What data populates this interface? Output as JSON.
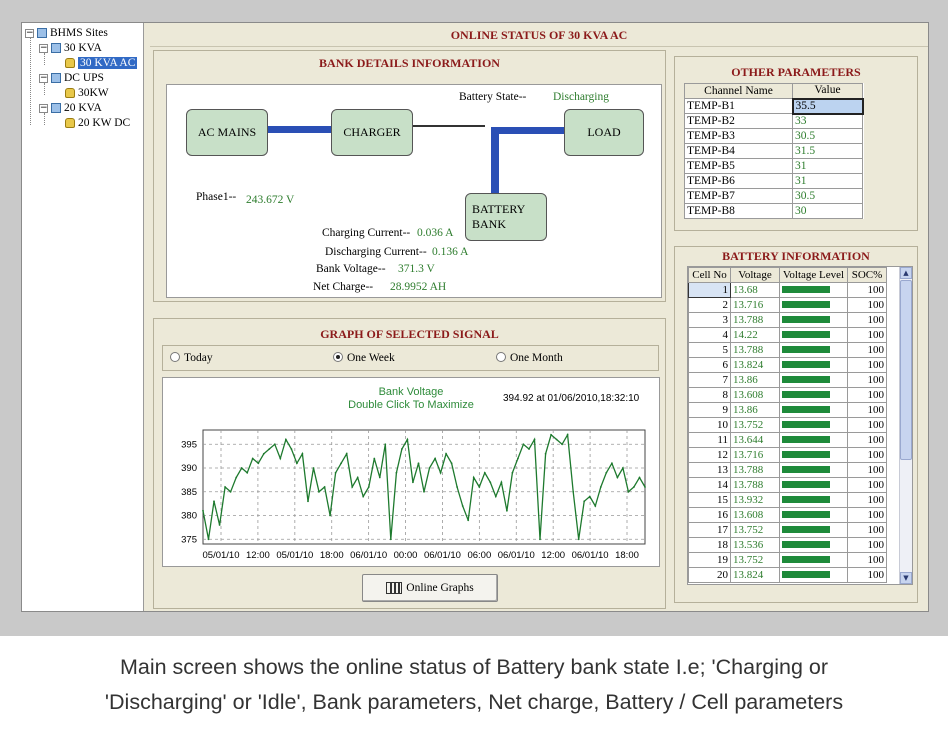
{
  "tree": {
    "root": "BHMS Sites",
    "groups": [
      {
        "label": "30 KVA",
        "children": [
          "30 KVA AC"
        ]
      },
      {
        "label": "DC UPS",
        "children": [
          "30KW"
        ]
      },
      {
        "label": "20 KVA",
        "children": [
          "20 KW DC"
        ]
      }
    ],
    "selected": "30 KVA AC"
  },
  "main_title": "ONLINE STATUS OF 30 KVA AC",
  "bank_details": {
    "title": "BANK DETAILS INFORMATION",
    "nodes": {
      "ac_mains": "AC MAINS",
      "charger": "CHARGER",
      "load": "LOAD",
      "battery_bank_line1": "BATTERY",
      "battery_bank_line2": "BANK"
    },
    "battery_state_label": "Battery State--",
    "battery_state_value": "Discharging",
    "phase1_label": "Phase1--",
    "phase1_value": "243.672 V",
    "charging_current_label": "Charging Current--",
    "charging_current_value": "0.036 A",
    "discharging_current_label": "Discharging Current--",
    "discharging_current_value": "0.136 A",
    "bank_voltage_label": "Bank Voltage--",
    "bank_voltage_value": "371.3 V",
    "net_charge_label": "Net Charge--",
    "net_charge_value": "28.9952 AH"
  },
  "graph": {
    "title": "GRAPH OF SELECTED SIGNAL",
    "radio_today": "Today",
    "radio_week": "One Week",
    "radio_month": "One Month",
    "selected_range": "One Week",
    "online_graphs_button": "Online Graphs"
  },
  "chart_data": {
    "type": "line",
    "title": "Bank Voltage",
    "subtitle": "Double Click To Maximize",
    "cursor_readout": "394.92 at 01/06/2010,18:32:10",
    "ylim": [
      374,
      398
    ],
    "yticks": [
      375,
      380,
      385,
      390,
      395
    ],
    "xticks": [
      "05/01/10",
      "12:00",
      "05/01/10",
      "18:00",
      "06/01/10",
      "00:00",
      "06/01/10",
      "06:00",
      "06/01/10",
      "12:00",
      "06/01/10",
      "18:00"
    ],
    "series": [
      {
        "color": "#1e7a2e",
        "x_hours": [
          0,
          0.5,
          1.0,
          1.5,
          2.0,
          2.5,
          3.0,
          3.5,
          4.0,
          4.5,
          5.0,
          5.5,
          6.0,
          6.5,
          7.0,
          7.5,
          8.0,
          8.5,
          9.0,
          9.5,
          10.0,
          10.5,
          11.0,
          11.5,
          12.0,
          12.5,
          13.0,
          13.5,
          14.0,
          14.5,
          15.0,
          15.5,
          16.0,
          16.5,
          17.0,
          17.5,
          18.0,
          18.5,
          19.0,
          19.5,
          20.0,
          20.5,
          21.0,
          21.5,
          22.0,
          22.5,
          23.0,
          23.5,
          24.0,
          24.5,
          25.0,
          25.5,
          26.0,
          26.5,
          27.0,
          27.5,
          28.0,
          28.5,
          29.0,
          29.5,
          30.0,
          30.5,
          31.0,
          31.5,
          32.0,
          32.5,
          33.0,
          33.5,
          34.0,
          34.5,
          35.0,
          35.5,
          36.0,
          36.5,
          37.0,
          37.5,
          38.0,
          38.5,
          39.0,
          39.5,
          40.0
        ],
        "values": [
          381,
          375,
          383,
          378,
          386,
          385,
          388,
          390,
          389,
          392,
          391,
          393,
          394,
          395,
          392,
          396,
          394,
          391,
          393,
          383,
          390,
          385,
          386,
          380,
          389,
          391,
          393,
          386,
          388,
          384,
          386,
          392,
          388,
          395,
          375,
          389,
          394,
          396,
          387,
          391,
          385,
          390,
          392,
          389,
          393,
          391,
          386,
          382,
          379,
          388,
          386,
          389,
          387,
          384,
          387,
          381,
          389,
          392,
          395,
          394,
          396,
          375,
          393,
          397,
          396,
          395,
          397,
          385,
          375,
          383,
          384,
          382,
          386,
          389,
          391,
          388,
          390,
          385,
          386,
          388,
          386
        ]
      }
    ]
  },
  "other_params": {
    "title": "OTHER PARAMETERS",
    "col_channel": "Channel Name",
    "col_value": "Value",
    "rows": [
      {
        "name": "TEMP-B1",
        "value": "35.5"
      },
      {
        "name": "TEMP-B2",
        "value": "33"
      },
      {
        "name": "TEMP-B3",
        "value": "30.5"
      },
      {
        "name": "TEMP-B4",
        "value": "31.5"
      },
      {
        "name": "TEMP-B5",
        "value": "31"
      },
      {
        "name": "TEMP-B6",
        "value": "31"
      },
      {
        "name": "TEMP-B7",
        "value": "30.5"
      },
      {
        "name": "TEMP-B8",
        "value": "30"
      }
    ]
  },
  "battery_info": {
    "title": "BATTERY INFORMATION",
    "col_cell": "Cell No",
    "col_voltage": "Voltage",
    "col_level": "Voltage Level",
    "col_soc": "SOC%",
    "level_color": "#1e8a3a",
    "rows": [
      {
        "cell": "1",
        "voltage": "13.68",
        "soc": "100",
        "level": 0.92
      },
      {
        "cell": "2",
        "voltage": "13.716",
        "soc": "100",
        "level": 0.92
      },
      {
        "cell": "3",
        "voltage": "13.788",
        "soc": "100",
        "level": 0.92
      },
      {
        "cell": "4",
        "voltage": "14.22",
        "soc": "100",
        "level": 0.92
      },
      {
        "cell": "5",
        "voltage": "13.788",
        "soc": "100",
        "level": 0.92
      },
      {
        "cell": "6",
        "voltage": "13.824",
        "soc": "100",
        "level": 0.92
      },
      {
        "cell": "7",
        "voltage": "13.86",
        "soc": "100",
        "level": 0.92
      },
      {
        "cell": "8",
        "voltage": "13.608",
        "soc": "100",
        "level": 0.92
      },
      {
        "cell": "9",
        "voltage": "13.86",
        "soc": "100",
        "level": 0.92
      },
      {
        "cell": "10",
        "voltage": "13.752",
        "soc": "100",
        "level": 0.92
      },
      {
        "cell": "11",
        "voltage": "13.644",
        "soc": "100",
        "level": 0.92
      },
      {
        "cell": "12",
        "voltage": "13.716",
        "soc": "100",
        "level": 0.92
      },
      {
        "cell": "13",
        "voltage": "13.788",
        "soc": "100",
        "level": 0.92
      },
      {
        "cell": "14",
        "voltage": "13.788",
        "soc": "100",
        "level": 0.92
      },
      {
        "cell": "15",
        "voltage": "13.932",
        "soc": "100",
        "level": 0.92
      },
      {
        "cell": "16",
        "voltage": "13.608",
        "soc": "100",
        "level": 0.92
      },
      {
        "cell": "17",
        "voltage": "13.752",
        "soc": "100",
        "level": 0.92
      },
      {
        "cell": "18",
        "voltage": "13.536",
        "soc": "100",
        "level": 0.92
      },
      {
        "cell": "19",
        "voltage": "13.752",
        "soc": "100",
        "level": 0.92
      },
      {
        "cell": "20",
        "voltage": "13.824",
        "soc": "100",
        "level": 0.92
      }
    ]
  },
  "caption_line1": "Main screen shows the online status of Battery bank state I.e; 'Charging or",
  "caption_line2": "'Discharging' or 'Idle', Bank parameters, Net charge, Battery / Cell parameters"
}
